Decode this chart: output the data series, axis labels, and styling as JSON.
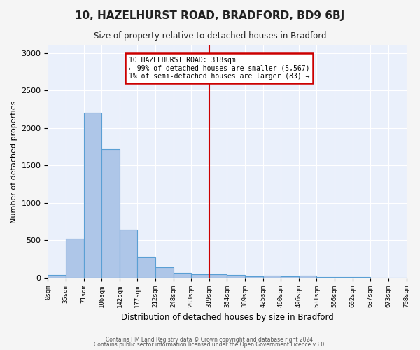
{
  "title": "10, HAZELHURST ROAD, BRADFORD, BD9 6BJ",
  "subtitle": "Size of property relative to detached houses in Bradford",
  "xlabel": "Distribution of detached houses by size in Bradford",
  "ylabel": "Number of detached properties",
  "bar_color": "#aec6e8",
  "bar_edge_color": "#5a9fd4",
  "bg_color": "#eaf0fb",
  "grid_color": "#ffffff",
  "fig_bg_color": "#f5f5f5",
  "bins": [
    0,
    35,
    71,
    106,
    142,
    177,
    212,
    248,
    283,
    319,
    354,
    389,
    425,
    460,
    496,
    531,
    566,
    602,
    637,
    673,
    708
  ],
  "values": [
    30,
    520,
    2200,
    1720,
    640,
    275,
    140,
    65,
    45,
    40,
    35,
    20,
    25,
    20,
    25,
    5,
    3,
    2,
    1,
    1
  ],
  "tick_labels": [
    "0sqm",
    "35sqm",
    "71sqm",
    "106sqm",
    "142sqm",
    "177sqm",
    "212sqm",
    "248sqm",
    "283sqm",
    "319sqm",
    "354sqm",
    "389sqm",
    "425sqm",
    "460sqm",
    "496sqm",
    "531sqm",
    "566sqm",
    "602sqm",
    "637sqm",
    "673sqm",
    "708sqm"
  ],
  "vline_x": 319,
  "vline_color": "#cc0000",
  "annotation_line1": "10 HAZELHURST ROAD: 318sqm",
  "annotation_line2": "← 99% of detached houses are smaller (5,567)",
  "annotation_line3": "1% of semi-detached houses are larger (83) →",
  "annotation_box_color": "#ffffff",
  "annotation_box_edge_color": "#cc0000",
  "ylim": [
    0,
    3100
  ],
  "yticks": [
    0,
    500,
    1000,
    1500,
    2000,
    2500,
    3000
  ],
  "footer1": "Contains HM Land Registry data © Crown copyright and database right 2024.",
  "footer2": "Contains public sector information licensed under the Open Government Licence v3.0."
}
